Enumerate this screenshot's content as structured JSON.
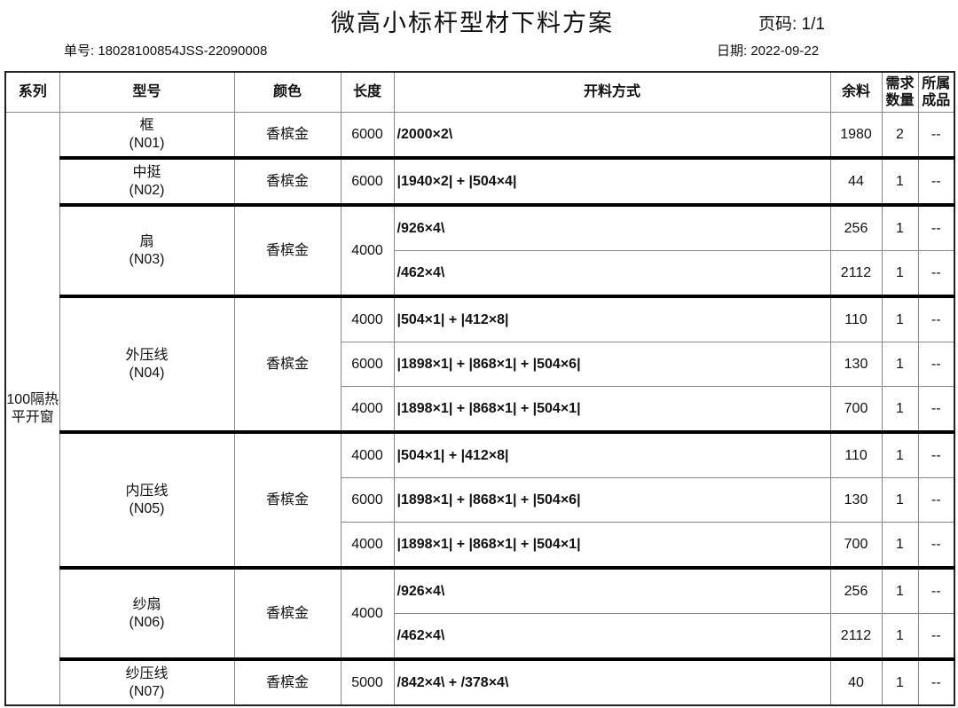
{
  "header": {
    "title": "微高小标杆型材下料方案",
    "page": "页码: 1/1",
    "order_no": "单号: 18028100854JSS-22090008",
    "date": "日期: 2022-09-22"
  },
  "columns": [
    "系列",
    "型号",
    "颜色",
    "长度",
    "开料方式",
    "余料",
    "需求数量",
    "所属成品"
  ],
  "series": "100隔热平开窗",
  "groups": [
    {
      "name": "框",
      "code": "(N01)",
      "color": "香槟金",
      "rows": [
        {
          "length": "6000",
          "cut": "/2000×2\\",
          "remain": "1980",
          "qty": "2",
          "product": "--"
        }
      ]
    },
    {
      "name": "中挺",
      "code": "(N02)",
      "color": "香槟金",
      "rows": [
        {
          "length": "6000",
          "cut": "|1940×2| + |504×4|",
          "remain": "44",
          "qty": "1",
          "product": "--"
        }
      ]
    },
    {
      "name": "扇",
      "code": "(N03)",
      "color": "香槟金",
      "shared_length": "4000",
      "rows": [
        {
          "cut": "/926×4\\",
          "remain": "256",
          "qty": "1",
          "product": "--"
        },
        {
          "cut": "/462×4\\",
          "remain": "2112",
          "qty": "1",
          "product": "--"
        }
      ]
    },
    {
      "name": "外压线",
      "code": "(N04)",
      "color": "香槟金",
      "rows": [
        {
          "length": "4000",
          "cut": "|504×1| + |412×8|",
          "remain": "110",
          "qty": "1",
          "product": "--"
        },
        {
          "length": "6000",
          "cut": "|1898×1| + |868×1| + |504×6|",
          "remain": "130",
          "qty": "1",
          "product": "--"
        },
        {
          "length": "4000",
          "cut": "|1898×1| + |868×1| + |504×1|",
          "remain": "700",
          "qty": "1",
          "product": "--"
        }
      ]
    },
    {
      "name": "内压线",
      "code": "(N05)",
      "color": "香槟金",
      "rows": [
        {
          "length": "4000",
          "cut": "|504×1| + |412×8|",
          "remain": "110",
          "qty": "1",
          "product": "--"
        },
        {
          "length": "6000",
          "cut": "|1898×1| + |868×1| + |504×6|",
          "remain": "130",
          "qty": "1",
          "product": "--"
        },
        {
          "length": "4000",
          "cut": "|1898×1| + |868×1| + |504×1|",
          "remain": "700",
          "qty": "1",
          "product": "--"
        }
      ]
    },
    {
      "name": "纱扇",
      "code": "(N06)",
      "color": "香槟金",
      "shared_length": "4000",
      "rows": [
        {
          "cut": "/926×4\\",
          "remain": "256",
          "qty": "1",
          "product": "--"
        },
        {
          "cut": "/462×4\\",
          "remain": "2112",
          "qty": "1",
          "product": "--"
        }
      ]
    },
    {
      "name": "纱压线",
      "code": "(N07)",
      "color": "香槟金",
      "rows": [
        {
          "length": "5000",
          "cut": "/842×4\\ + /378×4\\",
          "remain": "40",
          "qty": "1",
          "product": "--"
        }
      ]
    }
  ]
}
